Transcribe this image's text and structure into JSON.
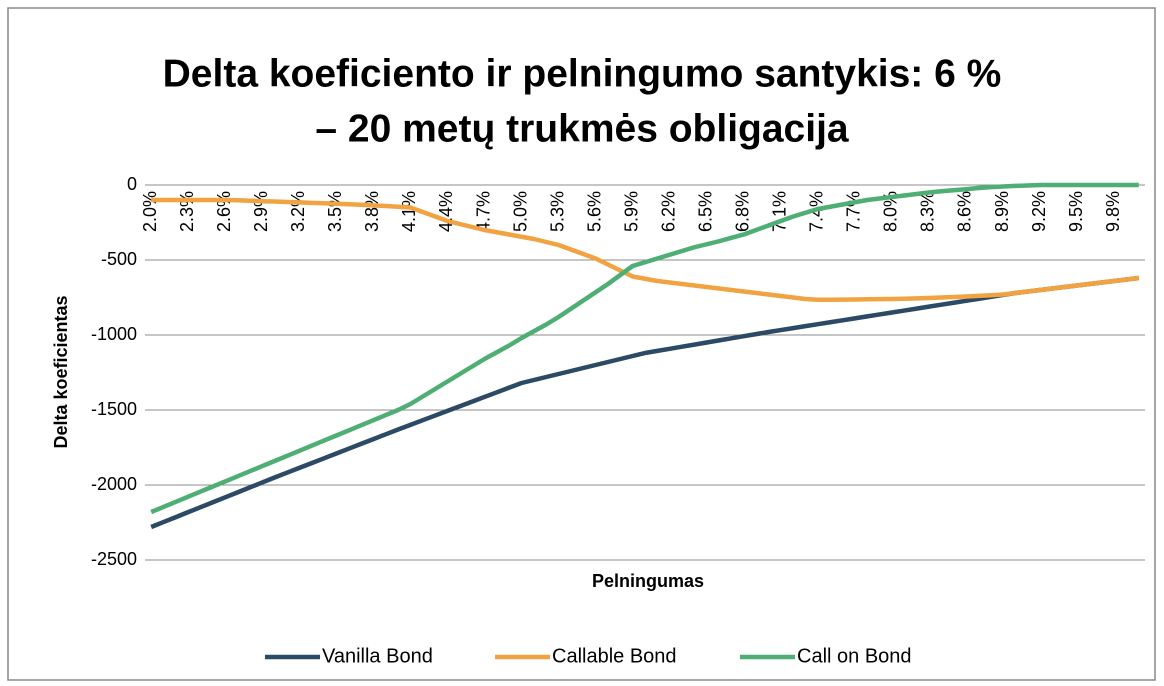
{
  "chart_data": {
    "type": "line",
    "title": "Delta koeficiento ir pelningumo santykis: 6 %",
    "subtitle": "– 20 metų trukmės obligacija",
    "x_label": "Pelningumas",
    "y_label": "Delta koeficientas",
    "categories": [
      "2.0%",
      null,
      null,
      "2.3%",
      null,
      null,
      "2.6%",
      null,
      null,
      "2.9%",
      null,
      null,
      "3.2%",
      null,
      null,
      "3.5%",
      null,
      null,
      "3.8%",
      null,
      null,
      "4.1%",
      null,
      null,
      "4.4%",
      null,
      null,
      "4.7%",
      null,
      null,
      "5.0%",
      null,
      null,
      "5.3%",
      null,
      null,
      "5.6%",
      null,
      null,
      "5.9%",
      null,
      null,
      "6.2%",
      null,
      null,
      "6.5%",
      null,
      null,
      "6.8%",
      null,
      null,
      "7.1%",
      null,
      null,
      "7.4%",
      null,
      null,
      "7.7%",
      null,
      null,
      "8.0%",
      null,
      null,
      "8.3%",
      null,
      null,
      "8.6%",
      null,
      null,
      "8.9%",
      null,
      null,
      "9.2%",
      null,
      null,
      "9.5%",
      null,
      null,
      "9.8%",
      null,
      null
    ],
    "series": [
      {
        "name": "Vanilla Bond",
        "color": "#2c4a66",
        "values": [
          -2280,
          -2247,
          -2214,
          -2181,
          -2148,
          -2115,
          -2082,
          -2049,
          -2016,
          -1983,
          -1950,
          -1918,
          -1886,
          -1854,
          -1822,
          -1790,
          -1758,
          -1726,
          -1694,
          -1662,
          -1630,
          -1599,
          -1568,
          -1537,
          -1506,
          -1475,
          -1444,
          -1413,
          -1382,
          -1351,
          -1320,
          -1300,
          -1280,
          -1260,
          -1240,
          -1220,
          -1200,
          -1180,
          -1160,
          -1140,
          -1120,
          -1106,
          -1092,
          -1078,
          -1064,
          -1050,
          -1036,
          -1022,
          -1008,
          -994,
          -980,
          -967,
          -954,
          -941,
          -928,
          -915,
          -902,
          -889,
          -876,
          -863,
          -850,
          -837,
          -824,
          -811,
          -798,
          -785,
          -772,
          -759,
          -746,
          -733,
          -720,
          -710,
          -700,
          -690,
          -680,
          -670,
          -660,
          -650,
          -640,
          -630,
          -620
        ]
      },
      {
        "name": "Callable Bond",
        "color": "#f2a341",
        "values": [
          -100,
          -100,
          -100,
          -100,
          -100,
          -100,
          -100,
          -102,
          -105,
          -108,
          -110,
          -113,
          -116,
          -119,
          -122,
          -125,
          -128,
          -132,
          -136,
          -140,
          -145,
          -150,
          -180,
          -210,
          -240,
          -260,
          -280,
          -300,
          -315,
          -330,
          -345,
          -360,
          -380,
          -400,
          -430,
          -460,
          -490,
          -530,
          -570,
          -610,
          -625,
          -640,
          -650,
          -660,
          -670,
          -680,
          -690,
          -700,
          -710,
          -720,
          -730,
          -740,
          -750,
          -760,
          -765,
          -765,
          -764,
          -763,
          -762,
          -761,
          -760,
          -758,
          -756,
          -753,
          -750,
          -747,
          -743,
          -739,
          -735,
          -730,
          -720,
          -710,
          -700,
          -690,
          -680,
          -670,
          -660,
          -650,
          -640,
          -630,
          -620
        ]
      },
      {
        "name": "Call on Bond",
        "color": "#4fae74",
        "values": [
          -2180,
          -2146,
          -2112,
          -2078,
          -2044,
          -2010,
          -1976,
          -1942,
          -1908,
          -1874,
          -1840,
          -1806,
          -1772,
          -1738,
          -1704,
          -1670,
          -1636,
          -1602,
          -1568,
          -1534,
          -1500,
          -1460,
          -1410,
          -1360,
          -1310,
          -1260,
          -1210,
          -1160,
          -1115,
          -1070,
          -1020,
          -975,
          -930,
          -880,
          -825,
          -770,
          -715,
          -660,
          -600,
          -540,
          -515,
          -490,
          -465,
          -440,
          -415,
          -395,
          -375,
          -352,
          -330,
          -300,
          -270,
          -240,
          -210,
          -185,
          -160,
          -145,
          -130,
          -115,
          -100,
          -90,
          -80,
          -70,
          -60,
          -50,
          -42,
          -35,
          -28,
          -20,
          -14,
          -10,
          -6,
          -3,
          0,
          0,
          0,
          0,
          0,
          0,
          0,
          0,
          0
        ]
      }
    ],
    "ylim": [
      -2500,
      0
    ],
    "yticks": [
      -2500,
      -2000,
      -1500,
      -1000,
      -500,
      0
    ],
    "grid": true,
    "legend": "bottom"
  }
}
